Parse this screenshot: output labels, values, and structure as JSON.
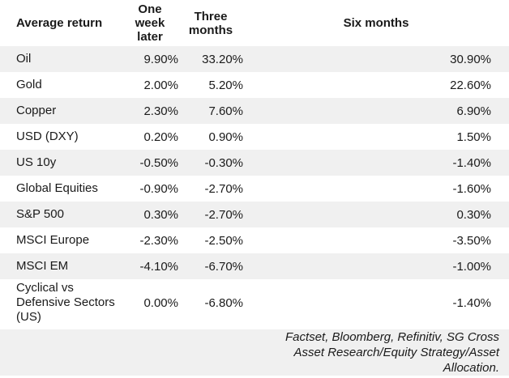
{
  "colors": {
    "background": "#ffffff",
    "row_stripe": "#f0f0f0",
    "footer_bg": "#f0f0f0",
    "text": "#1a1a1a"
  },
  "table": {
    "columns": [
      {
        "label": "Average return"
      },
      {
        "label": "One week later"
      },
      {
        "label": "Three months"
      },
      {
        "label": "Six months"
      }
    ],
    "rows": [
      {
        "label": "Oil",
        "one_week": "9.90%",
        "three_months": "33.20%",
        "six_months": "30.90%"
      },
      {
        "label": "Gold",
        "one_week": "2.00%",
        "three_months": "5.20%",
        "six_months": "22.60%"
      },
      {
        "label": "Copper",
        "one_week": "2.30%",
        "three_months": "7.60%",
        "six_months": "6.90%"
      },
      {
        "label": "USD (DXY)",
        "one_week": "0.20%",
        "three_months": "0.90%",
        "six_months": "1.50%"
      },
      {
        "label": "US 10y",
        "one_week": "-0.50%",
        "three_months": "-0.30%",
        "six_months": "-1.40%"
      },
      {
        "label": "Global Equities",
        "one_week": "-0.90%",
        "three_months": "-2.70%",
        "six_months": "-1.60%"
      },
      {
        "label": "S&P 500",
        "one_week": "0.30%",
        "three_months": "-2.70%",
        "six_months": "0.30%"
      },
      {
        "label": "MSCI Europe",
        "one_week": "-2.30%",
        "three_months": "-2.50%",
        "six_months": "-3.50%"
      },
      {
        "label": "MSCI EM",
        "one_week": "-4.10%",
        "three_months": "-6.70%",
        "six_months": "-1.00%"
      },
      {
        "label": "Cyclical vs Defensive Sectors (US)",
        "one_week": "0.00%",
        "three_months": "-6.80%",
        "six_months": "-1.40%"
      }
    ],
    "footer_lines": [
      "Factset, Bloomberg, Refinitiv, SG Cross",
      "Asset Research/Equity Strategy/Asset",
      "Allocation."
    ]
  },
  "chart_data": {
    "type": "table",
    "title": "Average return",
    "unit": "%",
    "categories": [
      "Oil",
      "Gold",
      "Copper",
      "USD (DXY)",
      "US 10y",
      "Global Equities",
      "S&P 500",
      "MSCI Europe",
      "MSCI EM",
      "Cyclical vs Defensive Sectors (US)"
    ],
    "series": [
      {
        "name": "One week later",
        "values": [
          9.9,
          2.0,
          2.3,
          0.2,
          -0.5,
          -0.9,
          0.3,
          -2.3,
          -4.1,
          0.0
        ]
      },
      {
        "name": "Three months",
        "values": [
          33.2,
          5.2,
          7.6,
          0.9,
          -0.3,
          -2.7,
          -2.7,
          -2.5,
          -6.7,
          -6.8
        ]
      },
      {
        "name": "Six months",
        "values": [
          30.9,
          22.6,
          6.9,
          1.5,
          -1.4,
          -1.6,
          0.3,
          -3.5,
          -1.0,
          -1.4
        ]
      }
    ],
    "source": "Factset, Bloomberg, Refinitiv, SG Cross Asset Research/Equity Strategy/Asset Allocation."
  }
}
